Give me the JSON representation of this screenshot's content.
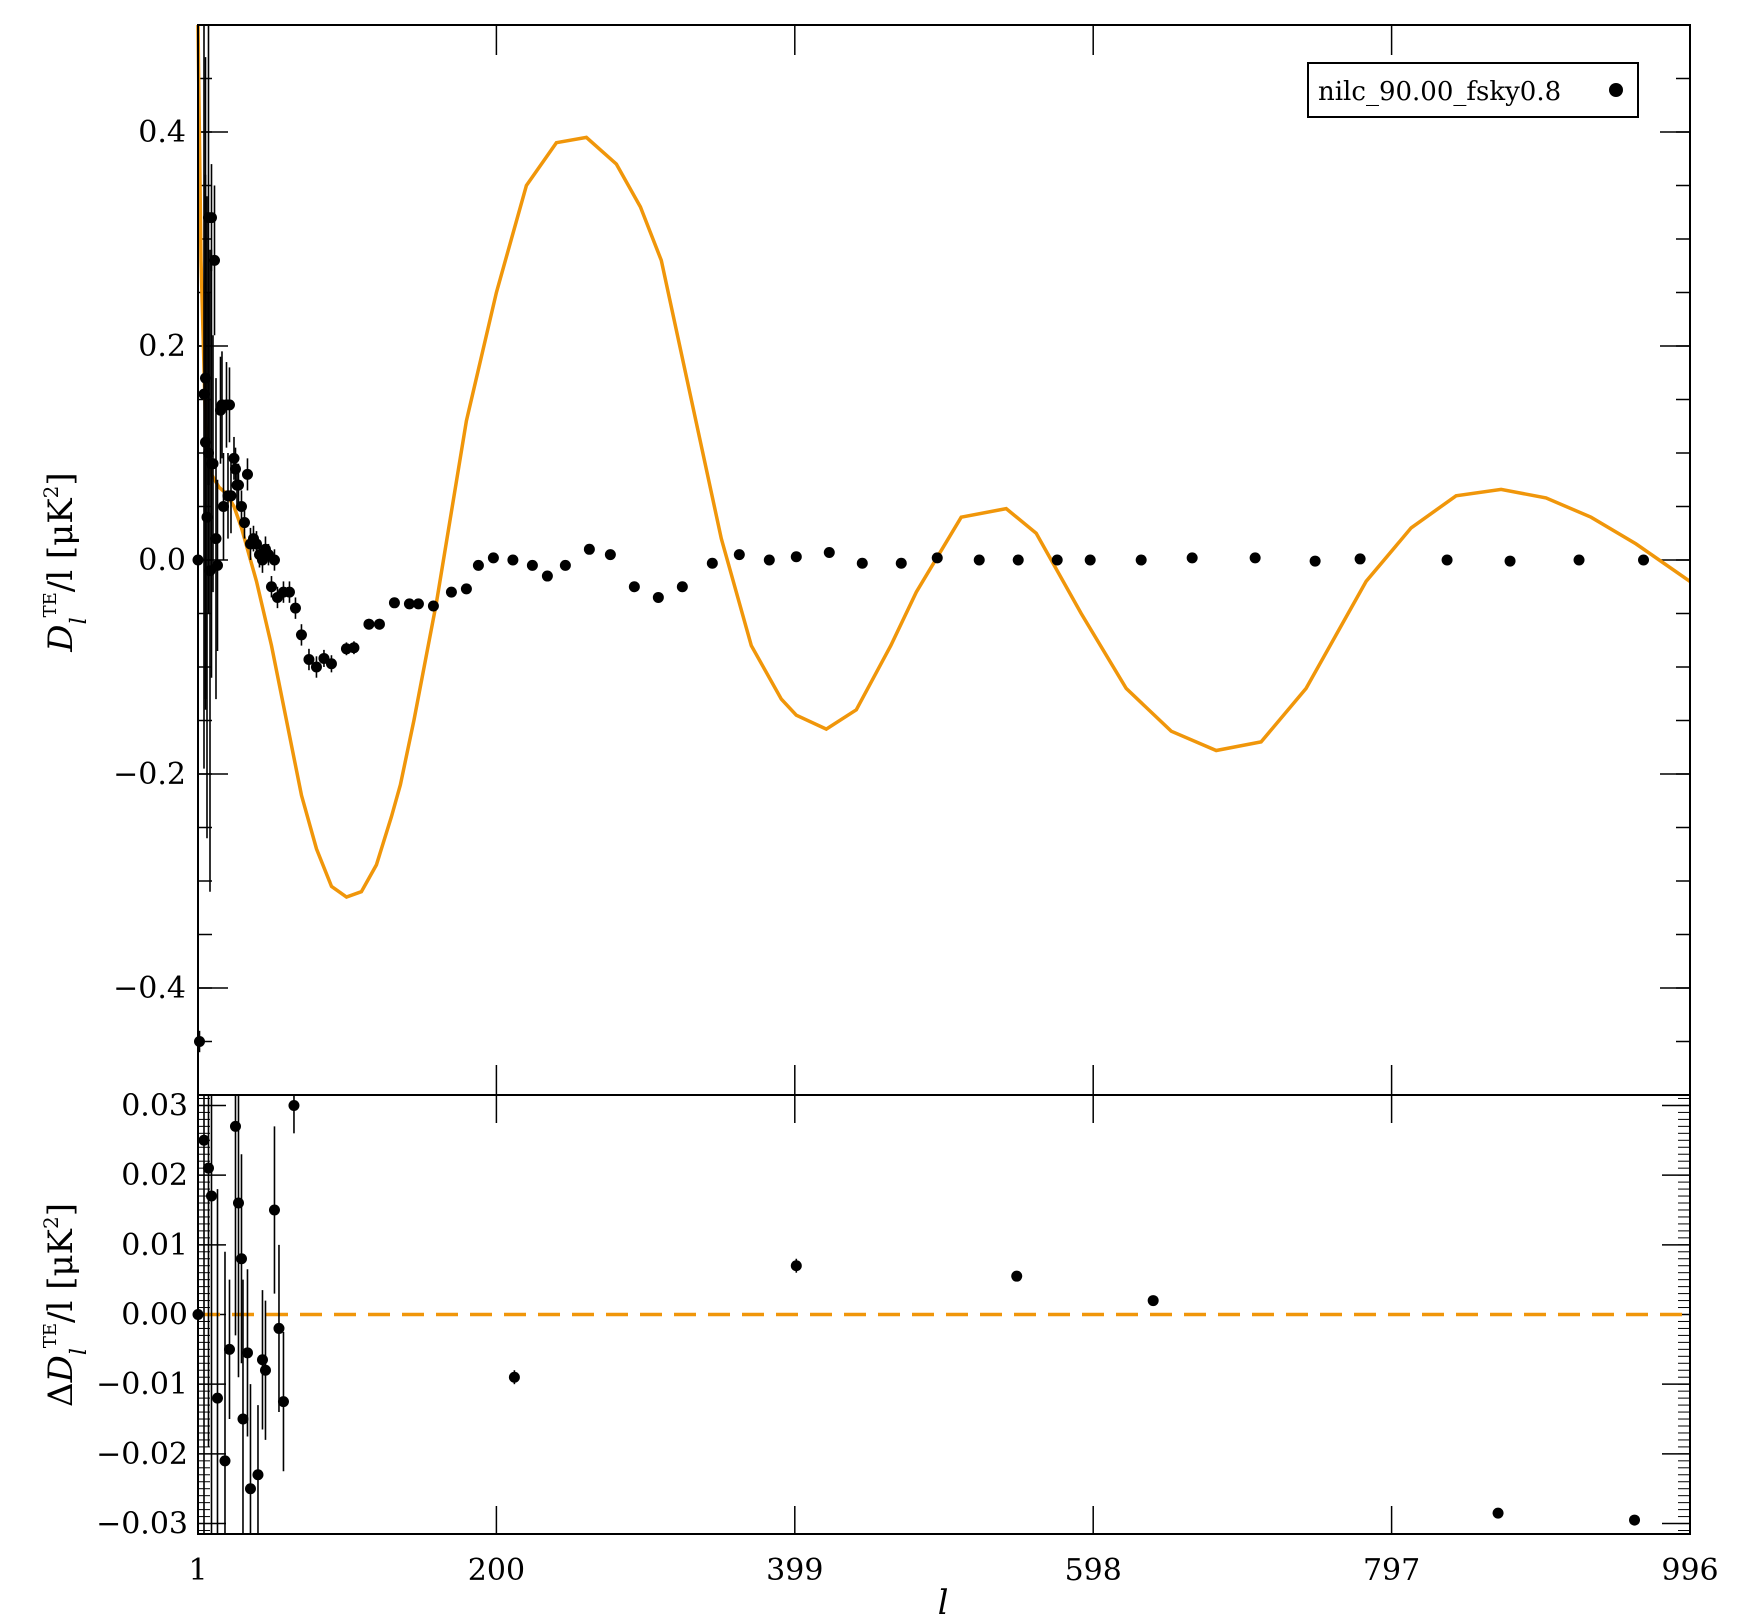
{
  "chart_data": [
    {
      "panel": "top",
      "type": "line+scatter",
      "ylabel": "D_l^TE / l [μK²]",
      "ylabel_parts": {
        "main": "D",
        "sub": "l",
        "sup": "TE",
        "rest": "/l [μK",
        "sq": "2",
        "close": "]"
      },
      "xlim": [
        1,
        996
      ],
      "ylim": [
        -0.5,
        0.5
      ],
      "yticks": [
        -0.4,
        -0.2,
        0.0,
        0.2,
        0.4
      ],
      "ytick_labels": [
        "−0.4",
        "−0.2",
        "0.0",
        "0.2",
        "0.4"
      ],
      "legend": {
        "placement": "top-right",
        "label": "nilc_90.00_fsky0.8"
      },
      "series": [
        {
          "kind": "model_line",
          "color": "#F0960A",
          "x": [
            1,
            3,
            6,
            10,
            15,
            20,
            25,
            30,
            40,
            50,
            60,
            70,
            80,
            90,
            100,
            110,
            120,
            130,
            136,
            145,
            160,
            180,
            200,
            220,
            240,
            260,
            280,
            296,
            310,
            330,
            350,
            370,
            390,
            400,
            420,
            440,
            463,
            480,
            510,
            540,
            560,
            590,
            620,
            650,
            680,
            710,
            740,
            760,
            780,
            810,
            840,
            870,
            900,
            930,
            960,
            996
          ],
          "y": [
            0.5,
            0.28,
            0.13,
            0.08,
            0.068,
            0.062,
            0.05,
            0.03,
            -0.02,
            -0.08,
            -0.15,
            -0.22,
            -0.27,
            -0.305,
            -0.315,
            -0.31,
            -0.285,
            -0.24,
            -0.21,
            -0.15,
            -0.04,
            0.13,
            0.25,
            0.35,
            0.39,
            0.395,
            0.37,
            0.33,
            0.28,
            0.15,
            0.02,
            -0.08,
            -0.13,
            -0.145,
            -0.158,
            -0.14,
            -0.08,
            -0.03,
            0.04,
            0.048,
            0.025,
            -0.05,
            -0.12,
            -0.16,
            -0.178,
            -0.17,
            -0.12,
            -0.07,
            -0.02,
            0.03,
            0.06,
            0.066,
            0.058,
            0.04,
            0.015,
            -0.02
          ]
        },
        {
          "kind": "data_points",
          "color": "#000000",
          "x": [
            1,
            2,
            5,
            6,
            6,
            7,
            8,
            8,
            9,
            10,
            10,
            11,
            12,
            13,
            14,
            16,
            17,
            18,
            20,
            21,
            22,
            23,
            25,
            26,
            27,
            28,
            30,
            32,
            34,
            36,
            38,
            40,
            42,
            44,
            46,
            48,
            50,
            52,
            54,
            58,
            62,
            66,
            70,
            75,
            80,
            85,
            90,
            100,
            105,
            115,
            122,
            132,
            142,
            148,
            158,
            170,
            180,
            188,
            198,
            211,
            224,
            234,
            246,
            262,
            276,
            292,
            308,
            324,
            344,
            362,
            382,
            400,
            422,
            444,
            470,
            494,
            522,
            548,
            574,
            596,
            630,
            664,
            706,
            746,
            776,
            834,
            876,
            922,
            965
          ],
          "y": [
            0.0,
            -0.45,
            0.155,
            0.11,
            0.17,
            0.04,
            0.32,
            0.1,
            -0.01,
            0.09,
            0.32,
            0.09,
            0.28,
            0.02,
            -0.005,
            0.14,
            0.145,
            0.05,
            0.145,
            0.06,
            0.145,
            0.06,
            0.095,
            0.085,
            0.07,
            0.07,
            0.05,
            0.035,
            0.08,
            0.015,
            0.02,
            0.015,
            0.005,
            0.0,
            0.01,
            0.005,
            -0.025,
            0.0,
            -0.035,
            -0.03,
            -0.03,
            -0.045,
            -0.07,
            -0.093,
            -0.1,
            -0.092,
            -0.097,
            -0.083,
            -0.082,
            -0.06,
            -0.06,
            -0.04,
            -0.041,
            -0.041,
            -0.043,
            -0.03,
            -0.027,
            -0.005,
            0.002,
            0.0,
            -0.005,
            -0.015,
            -0.005,
            0.01,
            0.005,
            -0.025,
            -0.035,
            -0.025,
            -0.003,
            0.005,
            0.0,
            0.003,
            0.007,
            -0.003,
            -0.003,
            0.002,
            0.0,
            0.0,
            0.0,
            0.0,
            0.0,
            0.002,
            0.002,
            -0.001,
            0.001,
            0.0,
            -0.001,
            0.0,
            0.0
          ],
          "err": [
            0.01,
            0.01,
            0.35,
            0.25,
            0.3,
            0.3,
            0.25,
            0.15,
            0.3,
            0.2,
            0.05,
            0.12,
            0.07,
            0.15,
            0.08,
            0.05,
            0.05,
            0.05,
            0.04,
            0.04,
            0.035,
            0.035,
            0.02,
            0.02,
            0.02,
            0.02,
            0.015,
            0.015,
            0.015,
            0.015,
            0.012,
            0.012,
            0.012,
            0.012,
            0.012,
            0.01,
            0.01,
            0.01,
            0.01,
            0.01,
            0.01,
            0.01,
            0.01,
            0.01,
            0.01,
            0.008,
            0.008,
            0.006,
            0.006,
            0.005,
            0.005,
            0.004,
            0.004,
            0.004,
            0.004,
            0.003,
            0.003,
            0.003,
            0.003,
            0.003,
            0.003,
            0.003,
            0.003,
            0.003,
            0.003,
            0.003,
            0.003,
            0.003,
            0.002,
            0.002,
            0.002,
            0.002,
            0.002,
            0.002,
            0.002,
            0.002,
            0.002,
            0.002,
            0.002,
            0.002,
            0.002,
            0.002,
            0.002,
            0.002,
            0.002,
            0.002,
            0.002,
            0.002,
            0.002
          ]
        }
      ]
    },
    {
      "panel": "bottom",
      "type": "scatter",
      "xlabel": "l",
      "ylabel": "ΔD_l^TE / l [μK²]",
      "ylabel_parts": {
        "delta": "Δ",
        "main": "D",
        "sub": "l",
        "sup": "TE",
        "rest": "/l [μK",
        "sq": "2",
        "close": "]"
      },
      "xlim": [
        1,
        996
      ],
      "ylim": [
        -0.0315,
        0.0315
      ],
      "xticks": [
        1,
        200,
        399,
        598,
        797,
        996
      ],
      "xtick_labels": [
        "1",
        "200",
        "399",
        "598",
        "797",
        "996"
      ],
      "yticks": [
        -0.03,
        -0.02,
        -0.01,
        0.0,
        0.01,
        0.02,
        0.03
      ],
      "ytick_labels": [
        "−0.03",
        "−0.02",
        "−0.01",
        "0.00",
        "0.01",
        "0.02",
        "0.03"
      ],
      "zero_line": {
        "y": 0,
        "style": "dashed",
        "color": "#F0960A"
      },
      "series": [
        {
          "kind": "residual_points",
          "color": "#000000",
          "x": [
            1,
            5,
            8,
            10,
            14,
            19,
            22,
            26,
            28,
            30,
            31,
            34,
            36,
            41,
            44,
            46,
            52,
            55,
            58,
            65,
            212,
            400,
            547,
            638,
            868,
            959
          ],
          "y": [
            0.0,
            0.025,
            0.021,
            0.017,
            -0.012,
            -0.021,
            -0.005,
            0.027,
            0.016,
            0.008,
            -0.015,
            -0.0055,
            -0.025,
            -0.023,
            -0.0065,
            -0.008,
            0.015,
            -0.002,
            -0.0125,
            0.03,
            -0.009,
            0.007,
            0.0055,
            0.002,
            -0.0285,
            -0.0295
          ],
          "err": [
            0.06,
            0.06,
            0.04,
            0.05,
            0.03,
            0.03,
            0.01,
            0.03,
            0.025,
            0.015,
            0.02,
            0.012,
            0.015,
            0.01,
            0.01,
            0.01,
            0.012,
            0.012,
            0.01,
            0.004,
            0.001,
            0.001,
            0.0006,
            0.0005,
            0.0005,
            0.0005
          ]
        }
      ]
    }
  ]
}
